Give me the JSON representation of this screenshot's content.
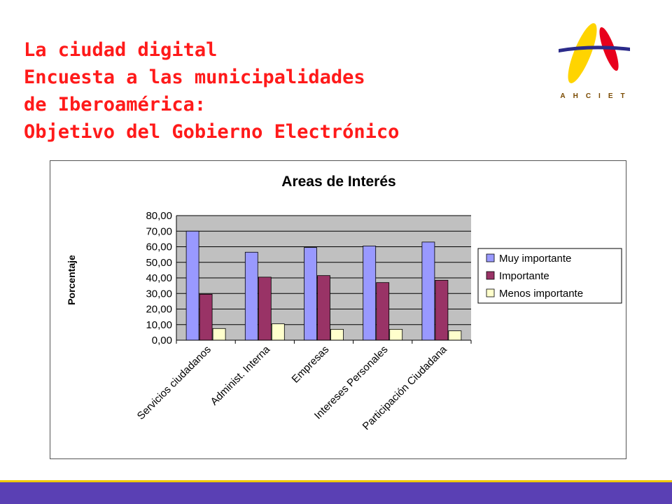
{
  "slide": {
    "title_lines": [
      "La ciudad digital",
      "Encuesta a las municipalidades",
      "de Iberoamérica:",
      "Objetivo del Gobierno Electrónico"
    ],
    "logo_text": "AHCIET",
    "logo_colors": [
      "#ffd400",
      "#e8001c",
      "#2b2b8a"
    ]
  },
  "colors": {
    "title": "#ff1a1a",
    "plot_bg": "#c0c0c0",
    "footer": "#5a40b4",
    "footer_stripe": "#f0c800"
  },
  "chart_data": {
    "type": "bar",
    "title": "Areas de Interés",
    "xlabel": "",
    "ylabel": "Porcentaje",
    "ylim": [
      0,
      80
    ],
    "yticks": [
      "80,00",
      "70,00",
      "60,00",
      "50,00",
      "40,00",
      "30,00",
      "20,00",
      "10,00",
      "0,00"
    ],
    "grid": true,
    "legend_position": "right",
    "categories": [
      "Servicios ciudadanos",
      "Administ. Interna",
      "Empresas",
      "Intereses Personales",
      "Participación Ciudadana"
    ],
    "series": [
      {
        "name": "Muy importante",
        "color": "#9999ff",
        "values": [
          70,
          56.5,
          59.5,
          60.5,
          63
        ]
      },
      {
        "name": "Importante",
        "color": "#993366",
        "values": [
          29.5,
          40.5,
          41.5,
          37,
          38.5
        ]
      },
      {
        "name": "Menos importante",
        "color": "#ffffcc",
        "values": [
          7.5,
          10.5,
          7,
          7,
          6
        ]
      }
    ]
  }
}
